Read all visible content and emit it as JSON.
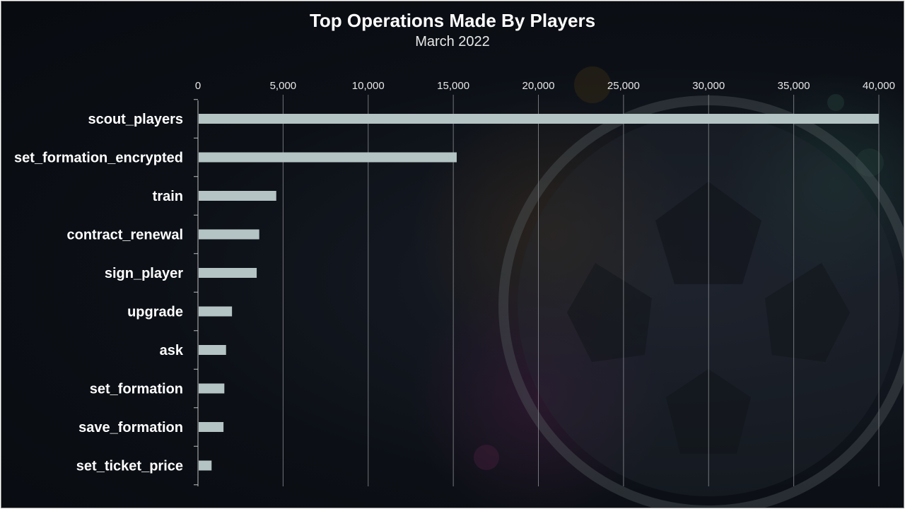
{
  "chart_data": {
    "type": "bar",
    "orientation": "horizontal",
    "title": "Top Operations Made By Players",
    "subtitle": "March 2022",
    "categories": [
      "scout_players",
      "set_formation_encrypted",
      "train",
      "contract_renewal",
      "sign_player",
      "upgrade",
      "ask",
      "set_formation",
      "save_formation",
      "set_ticket_price"
    ],
    "values": [
      40000,
      15200,
      4600,
      3600,
      3450,
      2000,
      1650,
      1550,
      1500,
      800
    ],
    "xlim": [
      0,
      40000
    ],
    "xticks": [
      0,
      5000,
      10000,
      15000,
      20000,
      25000,
      30000,
      35000,
      40000
    ],
    "xtick_labels": [
      "0",
      "5,000",
      "10,000",
      "15,000",
      "20,000",
      "25,000",
      "30,000",
      "35,000",
      "40,000"
    ],
    "x_axis_position": "top",
    "grid": "vertical",
    "bar_color": "#b4c3c3",
    "background_color": "#0c1016"
  }
}
